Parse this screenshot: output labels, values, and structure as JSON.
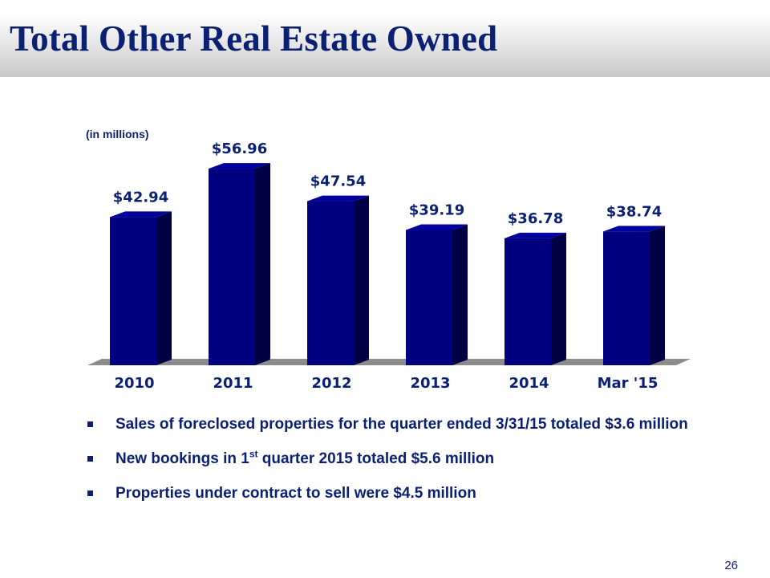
{
  "header": {
    "title": "Total Other Real Estate Owned"
  },
  "chart_data": {
    "type": "bar",
    "units_note": "(in millions)",
    "categories": [
      "2010",
      "2011",
      "2012",
      "2013",
      "2014",
      "Mar '15"
    ],
    "values": [
      42.94,
      56.96,
      47.54,
      39.19,
      36.78,
      38.74
    ],
    "data_labels": [
      "$42.94",
      "$56.96",
      "$47.54",
      "$39.19",
      "$36.78",
      "$38.74"
    ],
    "ylim": [
      0,
      60
    ],
    "grid": false,
    "legend": "none",
    "colors": {
      "bar_front": "#000080",
      "bar_side": "#000045",
      "bar_top": "#00009e",
      "floor": "#8c8c8c",
      "text": "#0b1f73"
    }
  },
  "bullets": [
    {
      "parts": [
        "Sales of foreclosed properties for the quarter ended 3/31/15 totaled $3.6 million"
      ]
    },
    {
      "parts": [
        "New bookings in 1",
        "st",
        " quarter 2015 totaled $5.6 million"
      ]
    },
    {
      "parts": [
        "Properties under contract to sell were $4.5 million"
      ]
    }
  ],
  "footer": {
    "page_number": "26"
  }
}
